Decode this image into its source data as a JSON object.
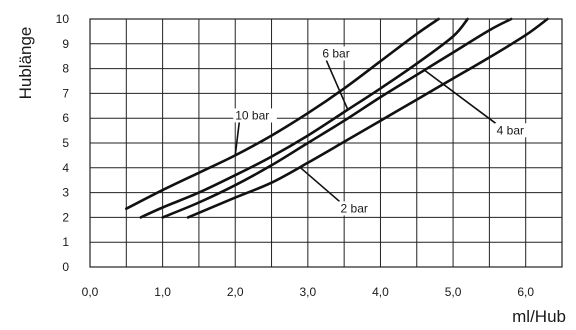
{
  "chart_data": {
    "type": "line",
    "title": "",
    "xlabel": "ml/Hub",
    "ylabel": "Hublänge",
    "xlim": [
      0,
      6.5
    ],
    "ylim": [
      0,
      10
    ],
    "x_ticks": [
      "0,0",
      "1,0",
      "2,0",
      "3,0",
      "4,0",
      "5,0",
      "6,0"
    ],
    "y_ticks": [
      "0",
      "1",
      "2",
      "3",
      "4",
      "5",
      "6",
      "7",
      "8",
      "9",
      "10"
    ],
    "grid": true,
    "series": [
      {
        "name": "10 bar",
        "x": [
          0.5,
          1.0,
          1.5,
          2.0,
          2.5,
          3.0,
          3.5,
          4.0,
          4.5,
          4.8
        ],
        "y": [
          2.35,
          3.1,
          3.8,
          4.5,
          5.3,
          6.2,
          7.2,
          8.3,
          9.4,
          10.0
        ]
      },
      {
        "name": "6 bar",
        "x": [
          0.7,
          1.0,
          1.5,
          2.0,
          2.5,
          3.0,
          3.5,
          4.0,
          4.5,
          5.0,
          5.2
        ],
        "y": [
          2.0,
          2.4,
          3.0,
          3.7,
          4.45,
          5.3,
          6.25,
          7.2,
          8.2,
          9.3,
          10.0
        ]
      },
      {
        "name": "4 bar",
        "x": [
          1.0,
          1.5,
          2.0,
          2.5,
          3.0,
          3.5,
          4.0,
          4.5,
          5.0,
          5.5,
          5.8
        ],
        "y": [
          2.0,
          2.6,
          3.3,
          4.1,
          5.0,
          5.9,
          6.85,
          7.75,
          8.65,
          9.55,
          10.0
        ]
      },
      {
        "name": "2 bar",
        "x": [
          1.35,
          2.0,
          2.5,
          3.0,
          3.5,
          4.0,
          4.5,
          5.0,
          5.5,
          6.0,
          6.3
        ],
        "y": [
          2.0,
          2.8,
          3.4,
          4.2,
          5.05,
          5.9,
          6.75,
          7.6,
          8.45,
          9.35,
          10.0
        ]
      }
    ],
    "annotations": [
      {
        "text": "10 bar",
        "series": "10 bar",
        "at": [
          2.0,
          5.95
        ],
        "point_on_series": [
          2.0,
          4.5
        ]
      },
      {
        "text": "6 bar",
        "series": "6 bar",
        "at": [
          3.2,
          8.45
        ],
        "point_on_series": [
          3.55,
          6.35
        ]
      },
      {
        "text": "4 bar",
        "series": "4 bar",
        "at": [
          5.6,
          5.35
        ],
        "point_on_series": [
          4.6,
          7.95
        ]
      },
      {
        "text": "2 bar",
        "series": "2 bar",
        "at": [
          3.45,
          2.2
        ],
        "point_on_series": [
          2.9,
          4.0
        ]
      }
    ]
  }
}
